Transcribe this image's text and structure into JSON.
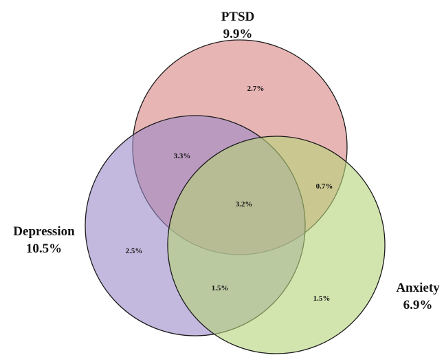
{
  "chart_data": {
    "type": "venn",
    "sets": [
      {
        "name": "PTSD",
        "total": "9.9%",
        "color": "#d98383"
      },
      {
        "name": "Depression",
        "total": "10.5%",
        "color": "#9b88c6"
      },
      {
        "name": "Anxiety",
        "total": "6.9%",
        "color": "#b5d37a"
      }
    ],
    "regions": {
      "ptsd_only": "2.7%",
      "ptsd_depression": "3.3%",
      "ptsd_anxiety": "0.7%",
      "all_three": "3.2%",
      "depression_only": "2.5%",
      "depression_anxiety": "1.5%",
      "anxiety_only": "1.5%"
    }
  }
}
